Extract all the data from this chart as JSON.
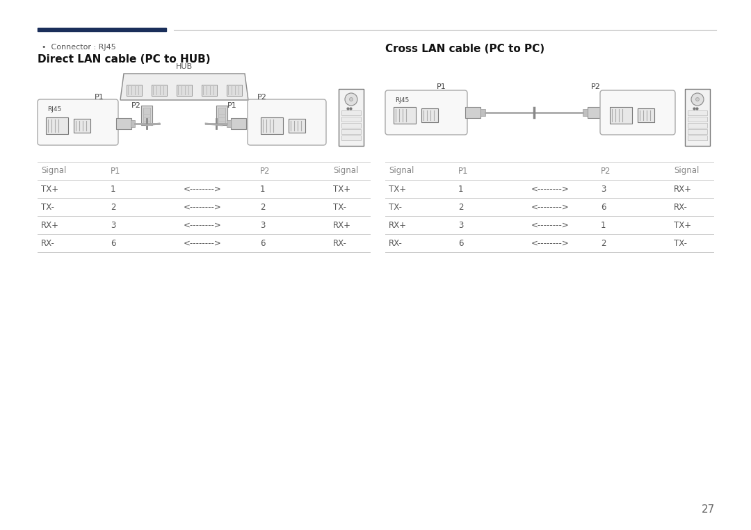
{
  "bg_color": "#ffffff",
  "page_number": "27",
  "header_line_dark": "#1a2e5a",
  "header_line_light": "#bbbbbb",
  "bullet_text": "Connector : RJ45",
  "left_title": "Direct LAN cable (PC to HUB)",
  "right_title": "Cross LAN cable (PC to PC)",
  "left_table_headers": [
    "Signal",
    "P1",
    "",
    "P2",
    "Signal"
  ],
  "left_table_rows": [
    [
      "TX+",
      "1",
      "<-------->",
      "1",
      "TX+"
    ],
    [
      "TX-",
      "2",
      "<-------->",
      "2",
      "TX-"
    ],
    [
      "RX+",
      "3",
      "<-------->",
      "3",
      "RX+"
    ],
    [
      "RX-",
      "6",
      "<-------->",
      "6",
      "RX-"
    ]
  ],
  "right_table_headers": [
    "Signal",
    "P1",
    "",
    "P2",
    "Signal"
  ],
  "right_table_rows": [
    [
      "TX+",
      "1",
      "<-------->",
      "3",
      "RX+"
    ],
    [
      "TX-",
      "2",
      "<-------->",
      "6",
      "RX-"
    ],
    [
      "RX+",
      "3",
      "<-------->",
      "1",
      "TX+"
    ],
    [
      "RX-",
      "6",
      "<-------->",
      "2",
      "TX-"
    ]
  ],
  "table_line_color": "#cccccc",
  "table_header_color": "#888888",
  "table_data_color": "#555555",
  "title_fontsize": 11,
  "label_fontsize": 8,
  "table_fontsize": 8.5
}
